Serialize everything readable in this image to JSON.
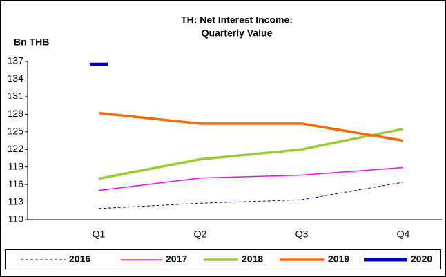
{
  "chart_data": {
    "type": "line",
    "title": [
      "TH: Net Interest Income:",
      "Quarterly Value"
    ],
    "y_label": "Bn THB",
    "categories": [
      "Q1",
      "Q2",
      "Q3",
      "Q4"
    ],
    "series": [
      {
        "name": "2016",
        "color": "#000080",
        "width": 1,
        "style": "dashed",
        "values": [
          111.9,
          112.8,
          113.4,
          116.4
        ]
      },
      {
        "name": "2017",
        "color": "#ff00ff",
        "width": 1.5,
        "style": "solid",
        "values": [
          115.0,
          117.1,
          117.6,
          118.9
        ]
      },
      {
        "name": "2018",
        "color": "#99cc33",
        "width": 3.5,
        "style": "solid",
        "values": [
          117.0,
          120.3,
          122.0,
          125.5
        ]
      },
      {
        "name": "2019",
        "color": "#ff6600",
        "width": 3.5,
        "style": "solid",
        "values": [
          128.2,
          126.4,
          126.4,
          123.5
        ]
      },
      {
        "name": "2020",
        "color": "#0000cc",
        "width": 5,
        "style": "solid",
        "values": [
          136.5,
          null,
          null,
          null
        ]
      }
    ],
    "ylim": [
      110,
      137
    ],
    "yticks": [
      110,
      113,
      116,
      119,
      122,
      125,
      128,
      131,
      134,
      137
    ],
    "legend": "bottom"
  }
}
